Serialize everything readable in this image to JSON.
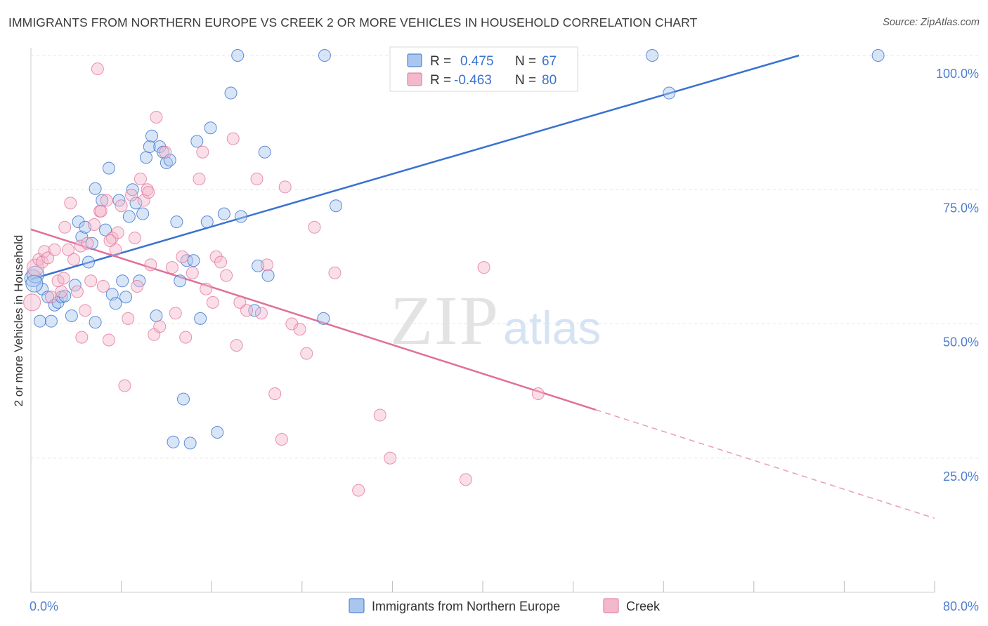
{
  "title": "IMMIGRANTS FROM NORTHERN EUROPE VS CREEK 2 OR MORE VEHICLES IN HOUSEHOLD CORRELATION CHART",
  "source": "Source: ZipAtlas.com",
  "watermark": {
    "zip": "ZIP",
    "atlas": "atlas"
  },
  "colors": {
    "blue": "#3a72d0",
    "blue_fill": "#a9c6ee",
    "pink": "#e0709a",
    "pink_fill": "#f4b8cc",
    "grid": "#e4e4e4",
    "tick_text": "#4f7fd0"
  },
  "legend": {
    "rows": [
      {
        "r_label": "R =",
        "r_value": "0.475",
        "n_label": "N =",
        "n_value": "67"
      },
      {
        "r_label": "R =",
        "r_value": "-0.463",
        "n_label": "N =",
        "n_value": "80"
      }
    ]
  },
  "chart_data": {
    "type": "scatter",
    "title": "IMMIGRANTS FROM NORTHERN EUROPE VS CREEK 2 OR MORE VEHICLES IN HOUSEHOLD CORRELATION CHART",
    "xlabel": "",
    "ylabel": "2 or more Vehicles in Household",
    "xlim": [
      0,
      80
    ],
    "ylim": [
      0,
      105
    ],
    "x_tick_labels": [
      "0.0%",
      "80.0%"
    ],
    "y_tick_labels": [
      "25.0%",
      "50.0%",
      "75.0%",
      "100.0%"
    ],
    "y_ticks": [
      25,
      50,
      75,
      100
    ],
    "grid": true,
    "legend_position": "top-center",
    "series": [
      {
        "name": "Immigrants from Northern Europe",
        "color": "#3a72d0",
        "r": 0.475,
        "n": 67,
        "trend": {
          "x0": 0,
          "y0": 58.3,
          "x1": 68,
          "y1": 100
        },
        "points": [
          [
            0.2,
            58.5
          ],
          [
            0.4,
            59.2
          ],
          [
            0.8,
            50.5
          ],
          [
            1.0,
            56.5
          ],
          [
            1.5,
            55.0
          ],
          [
            1.8,
            50.5
          ],
          [
            2.1,
            53.5
          ],
          [
            2.4,
            54.0
          ],
          [
            2.7,
            55.0
          ],
          [
            3.0,
            55.2
          ],
          [
            3.6,
            51.5
          ],
          [
            3.9,
            57.2
          ],
          [
            4.2,
            69.0
          ],
          [
            4.5,
            66.2
          ],
          [
            4.8,
            68.0
          ],
          [
            5.1,
            61.5
          ],
          [
            5.4,
            65.0
          ],
          [
            5.7,
            75.2
          ],
          [
            5.7,
            50.3
          ],
          [
            6.3,
            73.0
          ],
          [
            6.6,
            67.5
          ],
          [
            6.9,
            79.0
          ],
          [
            7.2,
            55.5
          ],
          [
            7.5,
            53.8
          ],
          [
            7.8,
            73.0
          ],
          [
            8.1,
            58.0
          ],
          [
            8.4,
            55.0
          ],
          [
            8.7,
            70.0
          ],
          [
            9.0,
            75.0
          ],
          [
            9.3,
            72.5
          ],
          [
            9.6,
            58.0
          ],
          [
            9.9,
            70.5
          ],
          [
            10.2,
            81.0
          ],
          [
            10.5,
            83.0
          ],
          [
            10.7,
            85.0
          ],
          [
            11.1,
            51.5
          ],
          [
            11.4,
            83.0
          ],
          [
            11.7,
            82.0
          ],
          [
            12.0,
            80.0
          ],
          [
            12.3,
            80.5
          ],
          [
            12.6,
            28.0
          ],
          [
            12.9,
            69.0
          ],
          [
            13.2,
            58.0
          ],
          [
            13.5,
            36.0
          ],
          [
            13.8,
            61.8
          ],
          [
            14.1,
            27.8
          ],
          [
            14.4,
            61.8
          ],
          [
            14.7,
            84.0
          ],
          [
            15.0,
            51.0
          ],
          [
            15.6,
            69.0
          ],
          [
            15.9,
            86.5
          ],
          [
            16.5,
            29.8
          ],
          [
            17.1,
            70.5
          ],
          [
            17.7,
            93.0
          ],
          [
            18.3,
            100.0
          ],
          [
            18.6,
            70.0
          ],
          [
            19.8,
            52.5
          ],
          [
            20.1,
            60.8
          ],
          [
            20.7,
            82.0
          ],
          [
            21.0,
            59.0
          ],
          [
            26.0,
            100.0
          ],
          [
            25.9,
            51.0
          ],
          [
            27.0,
            72.0
          ],
          [
            55.0,
            100.0
          ],
          [
            56.5,
            93.0
          ],
          [
            75.0,
            100.0
          ],
          [
            0.3,
            57.5
          ]
        ]
      },
      {
        "name": "Creek",
        "color": "#e0709a",
        "r": -0.463,
        "n": 80,
        "trend": {
          "x0": 0,
          "y0": 67.6,
          "x1": 50,
          "y1": 34.0
        },
        "trend_dashed": {
          "x0": 50,
          "y0": 34.0,
          "x1": 80,
          "y1": 13.8
        },
        "points": [
          [
            0.1,
            54.0
          ],
          [
            0.4,
            60.5
          ],
          [
            0.7,
            62.0
          ],
          [
            1.0,
            61.5
          ],
          [
            1.2,
            63.5
          ],
          [
            1.5,
            62.3
          ],
          [
            1.8,
            55.0
          ],
          [
            2.1,
            63.8
          ],
          [
            2.4,
            58.0
          ],
          [
            2.7,
            56.0
          ],
          [
            2.9,
            58.5
          ],
          [
            3.0,
            68.0
          ],
          [
            3.3,
            63.8
          ],
          [
            3.5,
            72.5
          ],
          [
            3.8,
            62.0
          ],
          [
            4.1,
            56.0
          ],
          [
            4.4,
            64.5
          ],
          [
            4.5,
            47.5
          ],
          [
            4.8,
            52.5
          ],
          [
            5.0,
            65.0
          ],
          [
            5.3,
            58.0
          ],
          [
            5.6,
            68.5
          ],
          [
            5.9,
            97.5
          ],
          [
            6.1,
            71.0
          ],
          [
            6.4,
            57.0
          ],
          [
            6.7,
            73.0
          ],
          [
            6.9,
            47.0
          ],
          [
            7.2,
            66.0
          ],
          [
            7.5,
            63.8
          ],
          [
            7.7,
            67.0
          ],
          [
            8.0,
            72.0
          ],
          [
            8.3,
            38.5
          ],
          [
            8.6,
            51.0
          ],
          [
            8.9,
            74.0
          ],
          [
            9.2,
            66.0
          ],
          [
            9.4,
            57.0
          ],
          [
            9.7,
            77.0
          ],
          [
            10.0,
            73.0
          ],
          [
            10.3,
            75.0
          ],
          [
            10.6,
            61.0
          ],
          [
            10.9,
            48.0
          ],
          [
            11.1,
            88.5
          ],
          [
            11.4,
            49.5
          ],
          [
            11.9,
            82.0
          ],
          [
            12.5,
            60.5
          ],
          [
            12.8,
            52.0
          ],
          [
            13.4,
            62.5
          ],
          [
            13.7,
            47.5
          ],
          [
            14.3,
            59.5
          ],
          [
            14.9,
            77.0
          ],
          [
            15.2,
            82.0
          ],
          [
            15.5,
            56.5
          ],
          [
            16.1,
            54.0
          ],
          [
            16.4,
            62.5
          ],
          [
            16.8,
            61.5
          ],
          [
            17.3,
            59.0
          ],
          [
            17.9,
            84.5
          ],
          [
            18.2,
            46.0
          ],
          [
            18.5,
            54.0
          ],
          [
            19.1,
            52.5
          ],
          [
            20.0,
            77.0
          ],
          [
            20.4,
            52.0
          ],
          [
            20.9,
            61.0
          ],
          [
            21.6,
            37.0
          ],
          [
            22.2,
            28.5
          ],
          [
            22.5,
            75.5
          ],
          [
            23.1,
            50.0
          ],
          [
            23.8,
            49.0
          ],
          [
            24.4,
            44.5
          ],
          [
            25.1,
            68.0
          ],
          [
            26.9,
            59.5
          ],
          [
            29.0,
            19.0
          ],
          [
            30.9,
            33.0
          ],
          [
            31.8,
            25.0
          ],
          [
            38.5,
            21.0
          ],
          [
            40.1,
            60.5
          ],
          [
            44.9,
            37.0
          ],
          [
            6.2,
            71.0
          ],
          [
            7.0,
            65.5
          ],
          [
            10.4,
            74.5
          ]
        ]
      }
    ]
  }
}
